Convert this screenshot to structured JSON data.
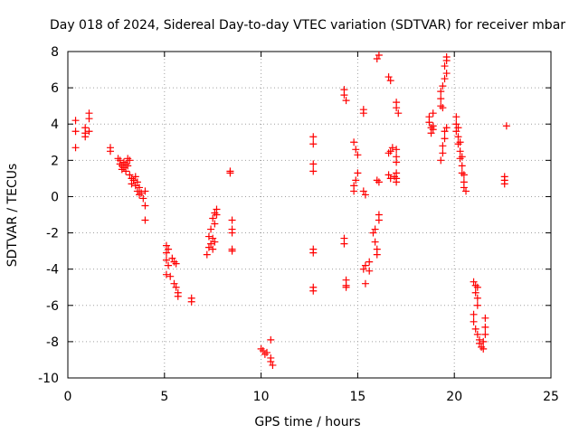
{
  "chart_data": {
    "type": "scatter",
    "title": "Day 018 of 2024, Sidereal Day-to-day VTEC variation (SDTVAR) for receiver mbar",
    "xlabel": "GPS time / hours",
    "ylabel": "SDTVAR / TECUs",
    "xlim": [
      0,
      25
    ],
    "ylim": [
      -10,
      8
    ],
    "xticks": [
      0,
      5,
      10,
      15,
      20,
      25
    ],
    "yticks": [
      -10,
      -8,
      -6,
      -4,
      -2,
      0,
      2,
      4,
      6,
      8
    ],
    "grid": true,
    "marker": "+",
    "series": [
      {
        "name": "SDTVAR",
        "color": "#ff0000",
        "points": [
          [
            0.4,
            4.2
          ],
          [
            0.4,
            3.6
          ],
          [
            0.4,
            2.7
          ],
          [
            0.9,
            3.8
          ],
          [
            0.9,
            3.5
          ],
          [
            0.9,
            3.3
          ],
          [
            1.1,
            4.6
          ],
          [
            1.1,
            4.3
          ],
          [
            1.1,
            3.6
          ],
          [
            2.2,
            2.7
          ],
          [
            2.2,
            2.5
          ],
          [
            2.6,
            2.1
          ],
          [
            2.7,
            2.0
          ],
          [
            2.7,
            1.8
          ],
          [
            2.8,
            1.7
          ],
          [
            2.8,
            1.5
          ],
          [
            2.9,
            1.9
          ],
          [
            2.9,
            1.6
          ],
          [
            3.0,
            1.8
          ],
          [
            3.0,
            1.4
          ],
          [
            3.1,
            2.1
          ],
          [
            3.1,
            1.7
          ],
          [
            3.2,
            2.0
          ],
          [
            3.2,
            1.2
          ],
          [
            3.3,
            1.0
          ],
          [
            3.3,
            0.7
          ],
          [
            3.4,
            0.9
          ],
          [
            3.5,
            1.1
          ],
          [
            3.5,
            0.6
          ],
          [
            3.6,
            0.8
          ],
          [
            3.6,
            0.3
          ],
          [
            3.7,
            0.5
          ],
          [
            3.7,
            0.1
          ],
          [
            3.8,
            0.2
          ],
          [
            3.9,
            -0.1
          ],
          [
            4.0,
            0.3
          ],
          [
            4.0,
            -0.5
          ],
          [
            4.0,
            -1.3
          ],
          [
            5.1,
            -2.7
          ],
          [
            5.1,
            -3.1
          ],
          [
            5.1,
            -3.5
          ],
          [
            5.1,
            -4.3
          ],
          [
            5.2,
            -2.9
          ],
          [
            5.2,
            -3.8
          ],
          [
            5.3,
            -4.4
          ],
          [
            5.4,
            -3.4
          ],
          [
            5.5,
            -3.6
          ],
          [
            5.5,
            -4.8
          ],
          [
            5.6,
            -3.7
          ],
          [
            5.6,
            -5.0
          ],
          [
            5.7,
            -5.3
          ],
          [
            5.7,
            -5.5
          ],
          [
            6.4,
            -5.6
          ],
          [
            6.4,
            -5.8
          ],
          [
            7.2,
            -3.2
          ],
          [
            7.3,
            -2.8
          ],
          [
            7.3,
            -2.2
          ],
          [
            7.4,
            -2.6
          ],
          [
            7.4,
            -1.8
          ],
          [
            7.5,
            -1.2
          ],
          [
            7.5,
            -2.3
          ],
          [
            7.5,
            -2.9
          ],
          [
            7.6,
            -1.5
          ],
          [
            7.6,
            -0.9
          ],
          [
            7.6,
            -2.5
          ],
          [
            7.7,
            -1.0
          ],
          [
            7.7,
            -0.7
          ],
          [
            8.4,
            1.4
          ],
          [
            8.4,
            1.3
          ],
          [
            8.5,
            -1.3
          ],
          [
            8.5,
            -1.8
          ],
          [
            8.5,
            -2.0
          ],
          [
            8.5,
            -2.9
          ],
          [
            8.5,
            -3.0
          ],
          [
            10.0,
            -8.4
          ],
          [
            10.1,
            -8.5
          ],
          [
            10.2,
            -8.7
          ],
          [
            10.3,
            -8.6
          ],
          [
            10.5,
            -7.9
          ],
          [
            10.5,
            -8.9
          ],
          [
            10.5,
            -9.1
          ],
          [
            10.6,
            -9.3
          ],
          [
            12.7,
            3.3
          ],
          [
            12.7,
            2.9
          ],
          [
            12.7,
            1.8
          ],
          [
            12.7,
            1.4
          ],
          [
            12.7,
            -2.9
          ],
          [
            12.7,
            -3.1
          ],
          [
            12.7,
            -5.0
          ],
          [
            12.7,
            -5.2
          ],
          [
            14.3,
            5.9
          ],
          [
            14.3,
            5.6
          ],
          [
            14.4,
            5.3
          ],
          [
            14.3,
            -2.3
          ],
          [
            14.3,
            -2.6
          ],
          [
            14.4,
            -4.6
          ],
          [
            14.4,
            -4.9
          ],
          [
            14.4,
            -5.0
          ],
          [
            14.8,
            3.0
          ],
          [
            14.9,
            2.6
          ],
          [
            15.0,
            2.3
          ],
          [
            15.0,
            1.3
          ],
          [
            14.9,
            0.9
          ],
          [
            14.8,
            0.6
          ],
          [
            14.8,
            0.3
          ],
          [
            15.3,
            4.8
          ],
          [
            15.3,
            4.6
          ],
          [
            15.3,
            0.3
          ],
          [
            15.4,
            0.1
          ],
          [
            15.3,
            -4.0
          ],
          [
            15.4,
            -3.8
          ],
          [
            15.4,
            -4.8
          ],
          [
            15.6,
            -3.6
          ],
          [
            15.6,
            -4.1
          ],
          [
            15.8,
            -2.0
          ],
          [
            15.9,
            -1.8
          ],
          [
            15.9,
            -2.5
          ],
          [
            16.0,
            -2.9
          ],
          [
            16.0,
            -3.2
          ],
          [
            16.1,
            -1.0
          ],
          [
            16.1,
            -1.3
          ],
          [
            16.0,
            0.9
          ],
          [
            16.1,
            0.8
          ],
          [
            16.0,
            7.6
          ],
          [
            16.1,
            7.8
          ],
          [
            16.6,
            6.6
          ],
          [
            16.7,
            6.4
          ],
          [
            16.6,
            2.4
          ],
          [
            16.7,
            2.5
          ],
          [
            16.8,
            2.7
          ],
          [
            16.6,
            1.2
          ],
          [
            16.7,
            1.0
          ],
          [
            16.9,
            1.1
          ],
          [
            17.0,
            2.6
          ],
          [
            17.0,
            2.2
          ],
          [
            17.0,
            1.9
          ],
          [
            17.0,
            1.3
          ],
          [
            17.0,
            1.0
          ],
          [
            17.0,
            0.8
          ],
          [
            17.0,
            5.2
          ],
          [
            17.0,
            4.9
          ],
          [
            17.1,
            4.6
          ],
          [
            18.7,
            4.4
          ],
          [
            18.7,
            4.1
          ],
          [
            18.8,
            3.8
          ],
          [
            18.8,
            3.5
          ],
          [
            18.9,
            4.6
          ],
          [
            18.9,
            3.9
          ],
          [
            18.9,
            3.7
          ],
          [
            19.3,
            5.8
          ],
          [
            19.3,
            5.4
          ],
          [
            19.3,
            5.0
          ],
          [
            19.4,
            4.9
          ],
          [
            19.4,
            6.1
          ],
          [
            19.5,
            6.5
          ],
          [
            19.5,
            7.2
          ],
          [
            19.6,
            7.5
          ],
          [
            19.6,
            7.7
          ],
          [
            19.6,
            6.8
          ],
          [
            19.5,
            3.6
          ],
          [
            19.5,
            3.2
          ],
          [
            19.4,
            2.8
          ],
          [
            19.4,
            2.4
          ],
          [
            19.3,
            2.0
          ],
          [
            19.6,
            3.8
          ],
          [
            20.1,
            4.4
          ],
          [
            20.1,
            4.0
          ],
          [
            20.1,
            3.6
          ],
          [
            20.2,
            3.8
          ],
          [
            20.2,
            3.3
          ],
          [
            20.2,
            2.9
          ],
          [
            20.3,
            3.0
          ],
          [
            20.3,
            2.5
          ],
          [
            20.3,
            2.1
          ],
          [
            20.4,
            2.2
          ],
          [
            20.4,
            1.7
          ],
          [
            20.4,
            1.3
          ],
          [
            20.5,
            1.2
          ],
          [
            20.5,
            0.8
          ],
          [
            20.5,
            0.5
          ],
          [
            20.6,
            0.3
          ],
          [
            21.0,
            -4.7
          ],
          [
            21.1,
            -4.9
          ],
          [
            21.1,
            -5.3
          ],
          [
            21.2,
            -5.0
          ],
          [
            21.2,
            -5.6
          ],
          [
            21.2,
            -6.0
          ],
          [
            21.0,
            -6.5
          ],
          [
            21.0,
            -6.9
          ],
          [
            21.1,
            -7.3
          ],
          [
            21.2,
            -7.6
          ],
          [
            21.3,
            -7.9
          ],
          [
            21.3,
            -8.1
          ],
          [
            21.4,
            -8.3
          ],
          [
            21.5,
            -8.4
          ],
          [
            21.5,
            -8.0
          ],
          [
            21.6,
            -7.6
          ],
          [
            21.6,
            -7.2
          ],
          [
            21.6,
            -6.7
          ],
          [
            22.7,
            3.9
          ],
          [
            22.6,
            1.1
          ],
          [
            22.6,
            0.9
          ],
          [
            22.6,
            0.7
          ]
        ]
      }
    ]
  }
}
